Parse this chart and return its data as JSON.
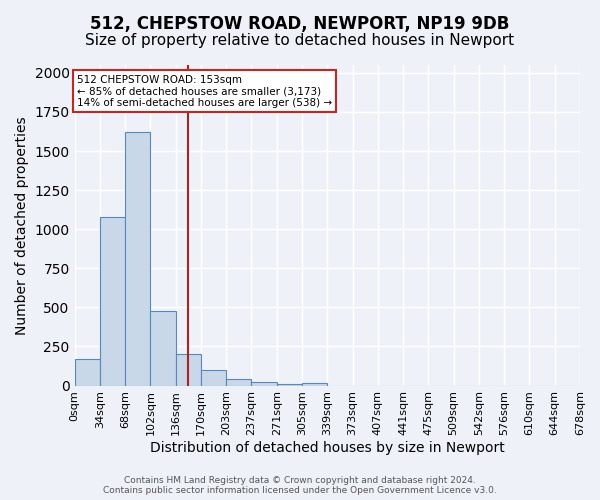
{
  "title": "512, CHEPSTOW ROAD, NEWPORT, NP19 9DB",
  "subtitle": "Size of property relative to detached houses in Newport",
  "xlabel": "Distribution of detached houses by size in Newport",
  "ylabel": "Number of detached properties",
  "bar_values": [
    170,
    1080,
    1620,
    480,
    200,
    100,
    40,
    20,
    10,
    15,
    0,
    0,
    0,
    0,
    0,
    0,
    0,
    0,
    0,
    0
  ],
  "tick_labels": [
    "0sqm",
    "34sqm",
    "68sqm",
    "102sqm",
    "136sqm",
    "170sqm",
    "203sqm",
    "237sqm",
    "271sqm",
    "305sqm",
    "339sqm",
    "373sqm",
    "407sqm",
    "441sqm",
    "475sqm",
    "509sqm",
    "542sqm",
    "576sqm",
    "610sqm",
    "644sqm",
    "678sqm"
  ],
  "bar_color": "#c8d8e8",
  "bar_edge_color": "#5588bb",
  "bg_color": "#eef2f8",
  "grid_color": "#ffffff",
  "vline_color": "#aa2222",
  "annotation_text": "512 CHEPSTOW ROAD: 153sqm\n← 85% of detached houses are smaller (3,173)\n14% of semi-detached houses are larger (538) →",
  "annotation_box_color": "#ffffff",
  "annotation_box_edge": "#cc2222",
  "ylim": [
    0,
    2050
  ],
  "footer_text": "Contains HM Land Registry data © Crown copyright and database right 2024.\nContains public sector information licensed under the Open Government Licence v3.0.",
  "title_fontsize": 12,
  "subtitle_fontsize": 11,
  "xlabel_fontsize": 10,
  "ylabel_fontsize": 10,
  "tick_fontsize": 8
}
